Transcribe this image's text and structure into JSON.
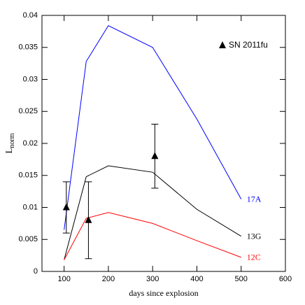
{
  "chart_data": {
    "type": "line",
    "xlabel": "days since explosion",
    "ylabel": [
      "L",
      "norm"
    ],
    "xlim": [
      50,
      600
    ],
    "xticks": [
      100,
      200,
      300,
      400,
      500,
      600
    ],
    "ylim": [
      0,
      0.04
    ],
    "yticks": [
      0,
      0.005,
      0.01,
      0.015,
      0.02,
      0.025,
      0.03,
      0.035,
      0.04
    ],
    "series": [
      {
        "name": "17A",
        "color": "#0000ff",
        "x": [
          100,
          150,
          200,
          300,
          400,
          500
        ],
        "values": [
          0.0065,
          0.0328,
          0.0384,
          0.035,
          0.0238,
          0.0113
        ]
      },
      {
        "name": "13G",
        "color": "#000000",
        "x": [
          100,
          150,
          200,
          300,
          400,
          500
        ],
        "values": [
          0.0018,
          0.0148,
          0.0165,
          0.0155,
          0.0097,
          0.0055
        ]
      },
      {
        "name": "12C",
        "color": "#ff0000",
        "x": [
          100,
          150,
          200,
          300,
          400,
          500
        ],
        "values": [
          0.0018,
          0.0083,
          0.0092,
          0.0075,
          0.0048,
          0.0022
        ]
      }
    ],
    "points": {
      "name": "SN 2011fu",
      "color": "#000000",
      "x": [
        105,
        155,
        305
      ],
      "values": [
        0.01,
        0.008,
        0.018
      ],
      "errors": [
        0.004,
        0.006,
        0.005
      ]
    }
  }
}
